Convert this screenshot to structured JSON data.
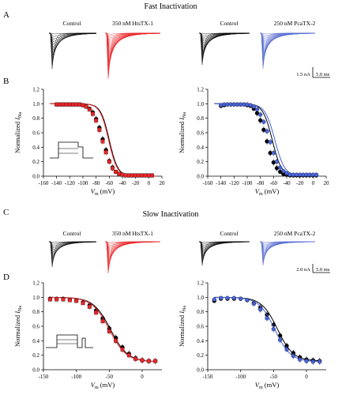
{
  "figure": {
    "section_fast": "Fast Inactivation",
    "section_slow": "Slow Inactivation",
    "panels": [
      "A",
      "B",
      "C",
      "D"
    ]
  },
  "traces": {
    "A": {
      "labels": [
        "Control",
        "350 nM HtsTX-1",
        "Control",
        "250 nM PcaTX-2"
      ],
      "colors": [
        "#000000",
        "#e8262a",
        "#000000",
        "#5a6fd0"
      ],
      "scalebar_current": "1.5 nA",
      "scalebar_time": "5.0 ms"
    },
    "C": {
      "labels": [
        "Control",
        "350 nM HtsTX-1",
        "Control",
        "250 nM PcaTX-2"
      ],
      "colors": [
        "#000000",
        "#e8262a",
        "#000000",
        "#5a6fd0"
      ],
      "scalebar_current": "2.0 nA",
      "scalebar_time": "5.0 ms"
    }
  },
  "chart_data": [
    {
      "id": "B-left",
      "type": "scatter",
      "xlabel_main": "V",
      "xlabel_sub": "m",
      "xlabel_unit": " (mV)",
      "ylabel_main": "Normalized I",
      "ylabel_sub": "Na",
      "xlim": [
        -160,
        20
      ],
      "ylim": [
        0,
        1.2
      ],
      "xticks": [
        -160,
        -140,
        -120,
        -100,
        -80,
        -60,
        -40,
        -20,
        0,
        20
      ],
      "yticks": [
        0.0,
        0.2,
        0.4,
        0.6,
        0.8,
        1.0,
        1.2
      ],
      "series": [
        {
          "color": "#000000",
          "marker": "circle",
          "v_half": -60,
          "slope": 6.5,
          "x": [
            -140,
            -135,
            -130,
            -125,
            -120,
            -115,
            -110,
            -105,
            -100,
            -95,
            -90,
            -85,
            -80,
            -75,
            -70,
            -65,
            -60,
            -55,
            -50,
            -45,
            -40,
            -35,
            -30,
            -25,
            -20,
            -15,
            -10,
            -5,
            0,
            5
          ],
          "y": [
            0.99,
            0.99,
            0.99,
            0.99,
            0.99,
            0.99,
            0.99,
            0.99,
            0.98,
            0.96,
            0.93,
            0.88,
            0.79,
            0.67,
            0.51,
            0.36,
            0.21,
            0.12,
            0.06,
            0.03,
            0.02,
            0.01,
            0.01,
            0.01,
            0.01,
            0.01,
            0.01,
            0.01,
            0.01,
            0.01
          ]
        },
        {
          "color": "#e8262a",
          "marker": "square",
          "v_half": -61,
          "slope": 6.5,
          "x": [
            -140,
            -135,
            -130,
            -125,
            -120,
            -115,
            -110,
            -105,
            -100,
            -95,
            -90,
            -85,
            -80,
            -75,
            -70,
            -65,
            -60,
            -55,
            -50,
            -45,
            -40,
            -35,
            -30,
            -25,
            -20,
            -15,
            -10,
            -5,
            0,
            5
          ],
          "y": [
            0.99,
            0.99,
            0.99,
            0.99,
            0.99,
            0.99,
            0.99,
            0.99,
            0.98,
            0.96,
            0.92,
            0.86,
            0.77,
            0.64,
            0.48,
            0.33,
            0.2,
            0.11,
            0.06,
            0.03,
            0.02,
            0.01,
            0.01,
            0.01,
            0.01,
            0.01,
            0.01,
            0.01,
            0.01,
            0.01
          ]
        }
      ]
    },
    {
      "id": "B-right",
      "type": "scatter",
      "xlabel_main": "V",
      "xlabel_sub": "m",
      "xlabel_unit": " (mV)",
      "ylabel_main": "Normalized I",
      "ylabel_sub": "Na",
      "xlim": [
        -160,
        20
      ],
      "ylim": [
        0,
        1.2
      ],
      "xticks": [
        -160,
        -140,
        -120,
        -100,
        -80,
        -60,
        -40,
        -20,
        0,
        20
      ],
      "yticks": [
        0.0,
        0.2,
        0.4,
        0.6,
        0.8,
        1.0,
        1.2
      ],
      "series": [
        {
          "color": "#000000",
          "marker": "circle",
          "v_half": -62,
          "slope": 7,
          "x": [
            -140,
            -135,
            -130,
            -125,
            -120,
            -115,
            -110,
            -105,
            -100,
            -95,
            -90,
            -85,
            -80,
            -75,
            -70,
            -65,
            -60,
            -55,
            -50,
            -45,
            -40,
            -35,
            -30,
            -25,
            -20,
            -15,
            -10,
            -5,
            0,
            5
          ],
          "y": [
            0.97,
            0.98,
            0.99,
            0.99,
            0.99,
            0.99,
            0.99,
            0.99,
            0.98,
            0.97,
            0.93,
            0.87,
            0.77,
            0.64,
            0.48,
            0.32,
            0.19,
            0.11,
            0.06,
            0.03,
            0.02,
            0.01,
            0.01,
            0.01,
            0.01,
            0.01,
            0.01,
            0.01,
            0.01,
            0.01
          ]
        },
        {
          "color": "#4a64d8",
          "marker": "circle",
          "v_half": -58,
          "slope": 7.5,
          "x": [
            -140,
            -135,
            -130,
            -125,
            -120,
            -115,
            -110,
            -105,
            -100,
            -95,
            -90,
            -85,
            -80,
            -75,
            -70,
            -65,
            -60,
            -55,
            -50,
            -45,
            -40,
            -35,
            -30,
            -25,
            -20,
            -15,
            -10,
            -5,
            0,
            5
          ],
          "y": [
            0.98,
            0.99,
            0.99,
            0.99,
            0.99,
            0.99,
            0.99,
            0.99,
            0.99,
            0.98,
            0.96,
            0.92,
            0.85,
            0.75,
            0.62,
            0.47,
            0.32,
            0.2,
            0.12,
            0.07,
            0.04,
            0.02,
            0.02,
            0.02,
            0.02,
            0.02,
            0.02,
            0.02,
            0.02,
            0.02
          ]
        }
      ]
    },
    {
      "id": "D-left",
      "type": "scatter",
      "xlabel_main": "V",
      "xlabel_sub": "m",
      "xlabel_unit": " (mV)",
      "ylabel_main": "Normalized I",
      "ylabel_sub": "Na",
      "xlim": [
        -150,
        30
      ],
      "ylim": [
        0,
        1.2
      ],
      "xticks": [
        -150,
        -100,
        -50,
        0
      ],
      "yticks": [
        0.0,
        0.2,
        0.4,
        0.6,
        0.8,
        1.0,
        1.2
      ],
      "series": [
        {
          "color": "#000000",
          "marker": "circle",
          "v_half": -48,
          "slope": 13,
          "base": 0.11,
          "x": [
            -140,
            -130,
            -120,
            -110,
            -100,
            -90,
            -80,
            -70,
            -60,
            -50,
            -40,
            -30,
            -20,
            -10,
            0,
            10,
            20
          ],
          "y": [
            0.98,
            0.98,
            0.98,
            0.97,
            0.96,
            0.93,
            0.89,
            0.82,
            0.71,
            0.57,
            0.44,
            0.31,
            0.22,
            0.16,
            0.13,
            0.12,
            0.12
          ]
        },
        {
          "color": "#e8262a",
          "marker": "square",
          "v_half": -50,
          "slope": 13,
          "base": 0.11,
          "x": [
            -140,
            -130,
            -120,
            -110,
            -100,
            -90,
            -80,
            -70,
            -60,
            -50,
            -40,
            -30,
            -20,
            -10,
            0,
            10,
            20
          ],
          "y": [
            0.97,
            0.97,
            0.97,
            0.96,
            0.95,
            0.92,
            0.87,
            0.79,
            0.67,
            0.53,
            0.4,
            0.28,
            0.2,
            0.15,
            0.13,
            0.12,
            0.12
          ]
        }
      ]
    },
    {
      "id": "D-right",
      "type": "scatter",
      "xlabel_main": "V",
      "xlabel_sub": "m",
      "xlabel_unit": " (mV)",
      "ylabel_main": "Normalized I",
      "ylabel_sub": "Na",
      "xlim": [
        -150,
        30
      ],
      "ylim": [
        0,
        1.2
      ],
      "xticks": [
        -150,
        -100,
        -50,
        0
      ],
      "yticks": [
        0.0,
        0.2,
        0.4,
        0.6,
        0.8,
        1.0,
        1.2
      ],
      "series": [
        {
          "color": "#000000",
          "marker": "circle",
          "v_half": -44,
          "slope": 12,
          "base": 0.12,
          "x": [
            -140,
            -130,
            -120,
            -110,
            -100,
            -90,
            -80,
            -70,
            -60,
            -50,
            -40,
            -30,
            -20,
            -10,
            0,
            10,
            20
          ],
          "y": [
            0.95,
            0.98,
            0.98,
            0.98,
            0.98,
            0.96,
            0.92,
            0.86,
            0.76,
            0.62,
            0.47,
            0.33,
            0.23,
            0.17,
            0.14,
            0.13,
            0.12
          ]
        },
        {
          "color": "#4a64d8",
          "marker": "circle",
          "v_half": -48,
          "slope": 12,
          "base": 0.11,
          "x": [
            -140,
            -130,
            -120,
            -110,
            -100,
            -90,
            -80,
            -70,
            -60,
            -50,
            -40,
            -30,
            -20,
            -10,
            0,
            10,
            20
          ],
          "y": [
            0.97,
            0.99,
            0.99,
            0.99,
            0.98,
            0.96,
            0.91,
            0.83,
            0.71,
            0.56,
            0.41,
            0.28,
            0.19,
            0.14,
            0.12,
            0.11,
            0.11
          ]
        }
      ]
    }
  ]
}
